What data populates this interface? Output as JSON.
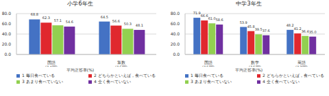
{
  "chart_data": [
    {
      "type": "bar",
      "title": "小学6年生",
      "x_label": "平均正答率(%)",
      "categories": [
        "国語\n(14問)",
        "算数\n(16問)"
      ],
      "series": [
        {
          "name": "1 毎日食べている",
          "color": "#4472c4",
          "values": [
            68.8,
            64.5
          ],
          "value_labels": [
            "68.8",
            "64.5"
          ]
        },
        {
          "name": "2 どちらかといえば，食べている",
          "color": "#e0282e",
          "values": [
            62.3,
            56.6
          ],
          "value_labels": [
            "62.3",
            "56.6"
          ]
        },
        {
          "name": "3 あまり食べていない",
          "color": "#92d050",
          "values": [
            57.1,
            50.3
          ],
          "value_labels": [
            "57.1",
            "50.3"
          ]
        },
        {
          "name": "4 全く食べていない",
          "color": "#7030a0",
          "values": [
            54.6,
            48.1
          ],
          "value_labels": [
            "54.6",
            "48.1"
          ]
        }
      ],
      "ylim": [
        0,
        80
      ],
      "yticks": [
        {
          "value": 0,
          "label": "0.0"
        },
        {
          "value": 20,
          "label": "20.0"
        },
        {
          "value": 40,
          "label": "40.0"
        },
        {
          "value": 60,
          "label": "60.0"
        },
        {
          "value": 80,
          "label": "80.0"
        }
      ],
      "grid": true,
      "data_labels": true
    },
    {
      "type": "bar",
      "title": "中学3年生",
      "x_label": "平均正答率(%)",
      "categories": [
        "国語\n(15問)",
        "数学\n(15問)",
        "英語\n(17問)"
      ],
      "series": [
        {
          "name": "1 毎日食べている",
          "color": "#4472c4",
          "values": [
            71.9,
            53.9,
            48.2
          ],
          "value_labels": [
            "71.9",
            "53.9",
            "48.2"
          ]
        },
        {
          "name": "2 どちらかといえば，食べている",
          "color": "#e0282e",
          "values": [
            66.6,
            45.8,
            41.2
          ],
          "value_labels": [
            "66.6",
            "45.8",
            "41.2"
          ]
        },
        {
          "name": "3 あまり食べていない",
          "color": "#92d050",
          "values": [
            61.0,
            39.5,
            36.4
          ],
          "value_labels": [
            "61.0",
            "39.5",
            "36.4"
          ]
        },
        {
          "name": "4 全く食べていない",
          "color": "#7030a0",
          "values": [
            58.6,
            37.6,
            35.0
          ],
          "value_labels": [
            "58.6",
            "37.6",
            "35.0"
          ]
        }
      ],
      "ylim": [
        0,
        80
      ],
      "yticks": [
        {
          "value": 0,
          "label": "0.0"
        },
        {
          "value": 20,
          "label": "20.0"
        },
        {
          "value": 40,
          "label": "40.0"
        },
        {
          "value": 60,
          "label": "60.0"
        },
        {
          "value": 80,
          "label": "80.0"
        }
      ],
      "grid": true,
      "data_labels": true
    }
  ]
}
